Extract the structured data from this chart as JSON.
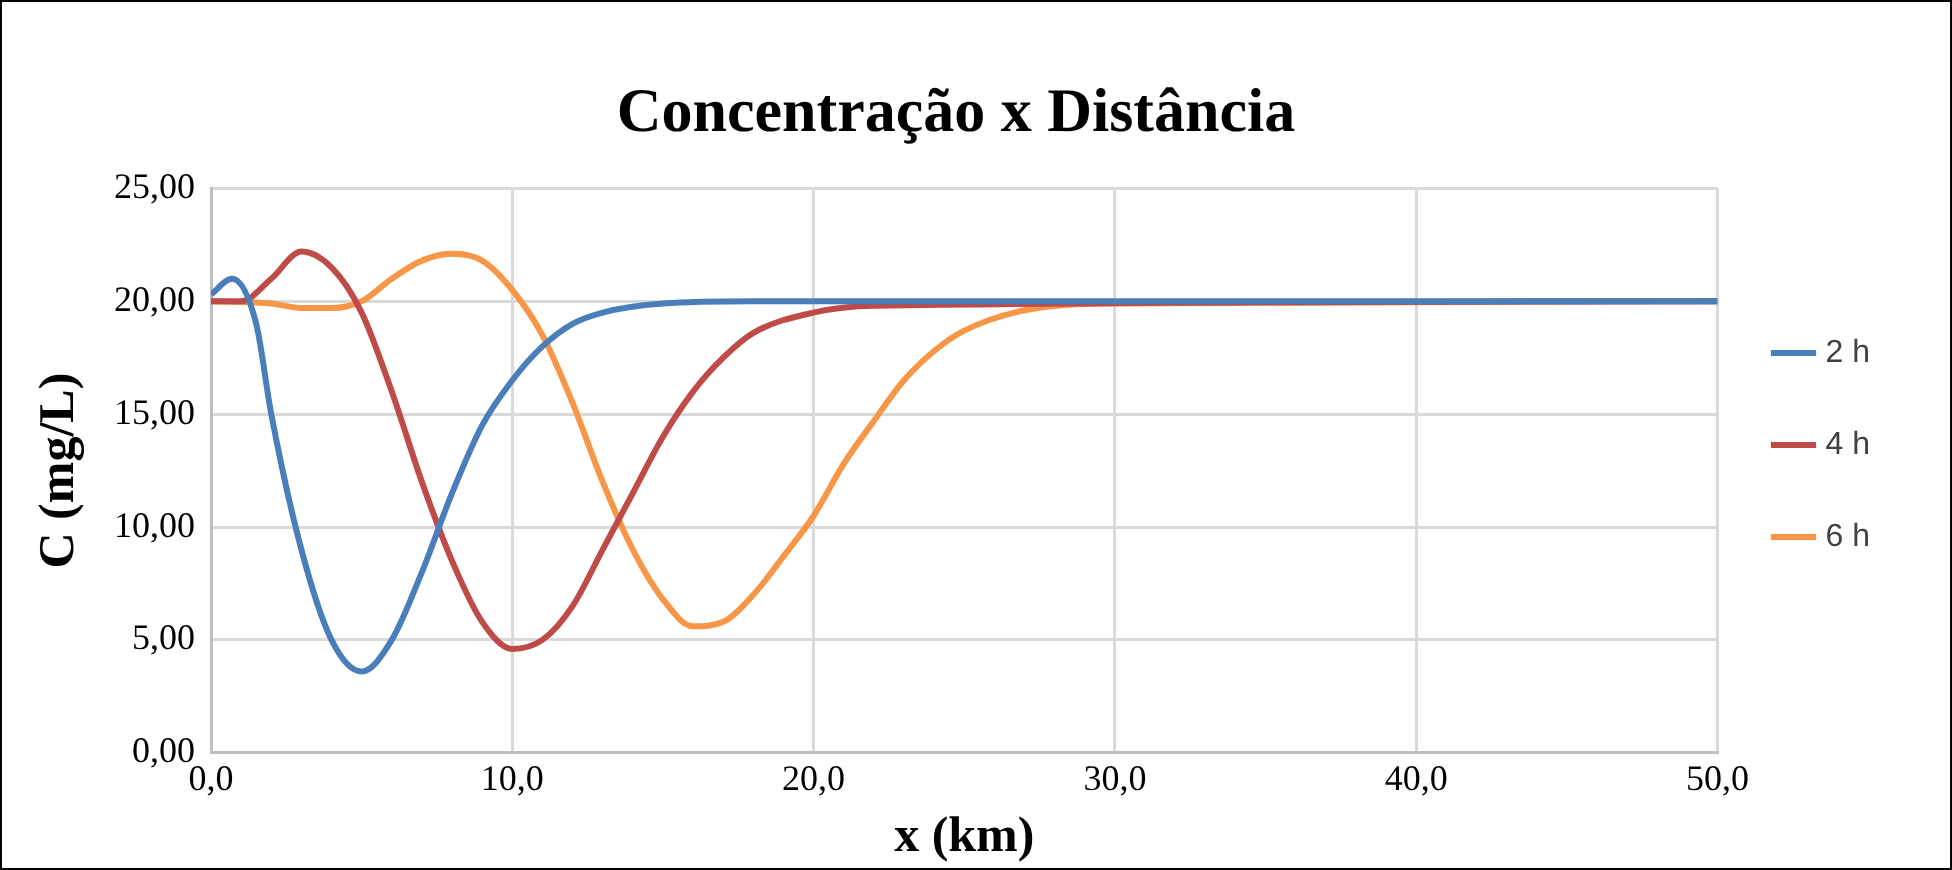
{
  "chart_data": {
    "type": "line",
    "title": "Concentração x Distância",
    "xlabel": "x (km)",
    "ylabel": "C (mg/L)",
    "xlim": [
      0,
      50
    ],
    "xticks": [
      {
        "value": 0,
        "label": "0,0"
      },
      {
        "value": 10,
        "label": "10,0"
      },
      {
        "value": 20,
        "label": "20,0"
      },
      {
        "value": 30,
        "label": "30,0"
      },
      {
        "value": 40,
        "label": "40,0"
      },
      {
        "value": 50,
        "label": "50,0"
      }
    ],
    "ylim": [
      0,
      25
    ],
    "yticks": [
      {
        "value": 0,
        "label": "0,00"
      },
      {
        "value": 5,
        "label": "5,00"
      },
      {
        "value": 10,
        "label": "10,00"
      },
      {
        "value": 15,
        "label": "15,00"
      },
      {
        "value": 20,
        "label": "20,00"
      },
      {
        "value": 25,
        "label": "25,00"
      }
    ],
    "grid": true,
    "legend": "right",
    "marker": "none",
    "line_style": "solid",
    "series": [
      {
        "name": "2 h",
        "color": "#4a7ebb",
        "x": [
          0,
          0.7,
          1.5,
          2,
          3,
          4,
          5,
          6,
          7,
          8,
          9,
          10,
          11,
          12,
          13,
          15,
          18,
          50
        ],
        "values": [
          20.3,
          21,
          19,
          15,
          9,
          5,
          3.6,
          5,
          8,
          11.5,
          14.5,
          16.5,
          18,
          19,
          19.5,
          19.9,
          20,
          20
        ]
      },
      {
        "name": "4 h",
        "color": "#be4b48",
        "x": [
          0,
          1,
          2,
          3,
          4,
          5,
          6,
          7,
          8,
          9,
          10,
          11,
          12,
          13,
          14,
          15,
          16,
          17,
          18,
          20,
          22,
          50
        ],
        "values": [
          20,
          20,
          21,
          22.2,
          21.5,
          19.5,
          16,
          12,
          8.5,
          5.8,
          4.6,
          5,
          6.5,
          9,
          11.5,
          14,
          16,
          17.5,
          18.6,
          19.5,
          19.8,
          20
        ]
      },
      {
        "name": "6 h",
        "color": "#f79646",
        "x": [
          0,
          2,
          3,
          4,
          5,
          6,
          7,
          8,
          9,
          10,
          11,
          12,
          13,
          14,
          15,
          16,
          17,
          18,
          19,
          20,
          21,
          22,
          23,
          24,
          25,
          27,
          30,
          50
        ],
        "values": [
          20,
          19.9,
          19.7,
          19.7,
          20,
          21,
          21.8,
          22.1,
          21.8,
          20.5,
          18.5,
          15.5,
          12,
          9,
          6.8,
          5.6,
          5.8,
          7,
          8.7,
          10.5,
          12.8,
          14.7,
          16.5,
          17.8,
          18.7,
          19.6,
          19.9,
          20
        ]
      }
    ]
  }
}
